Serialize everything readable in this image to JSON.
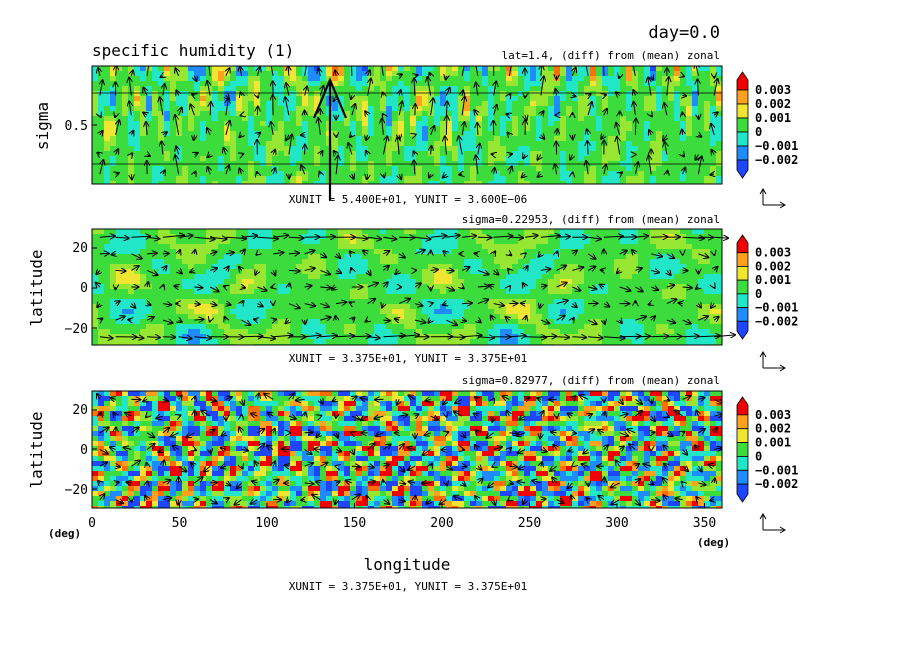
{
  "figure": {
    "title": "specific humidity (1)",
    "day_label": "day=0.0",
    "xlabel": "longitude",
    "x_unit_left": "(deg)",
    "x_unit_right": "(deg)",
    "x_ticks": [
      "0",
      "50",
      "100",
      "150",
      "200",
      "250",
      "300",
      "350"
    ]
  },
  "colors": {
    "levels": [
      "#1f46ff",
      "#1e8cff",
      "#22e6c8",
      "#3cdc3c",
      "#96e632",
      "#f0e632",
      "#ffa01e",
      "#ff6e00",
      "#f00000"
    ],
    "arrow": "#000000"
  },
  "colorbar_labels": [
    "0.003",
    "0.002",
    "0.001",
    "0",
    "−0.001",
    "−0.002"
  ],
  "chart_data": [
    {
      "type": "heatmap",
      "panel": "longitude-sigma section",
      "subtitle": "lat=1.4, (diff) from (mean) zonal",
      "ylabel": "sigma",
      "y_ticks": [
        "0.5"
      ],
      "xlim": [
        0,
        360
      ],
      "ylim": [
        0,
        1
      ],
      "vector_unit": "XUNIT = 5.400E+01, YUNIT = 3.600E−06",
      "colorbar": [
        "0.003",
        "0.002",
        "0.001",
        "0",
        "−0.001",
        "−0.002"
      ],
      "pattern": "vertical",
      "seed": 11,
      "arrow_style": "vertical"
    },
    {
      "type": "heatmap",
      "panel": "longitude-latitude map",
      "subtitle": "sigma=0.22953, (diff) from (mean) zonal",
      "ylabel": "latitude",
      "y_ticks": [
        "20",
        "0",
        "−20"
      ],
      "xlim": [
        0,
        360
      ],
      "ylim": [
        -30,
        30
      ],
      "vector_unit": "XUNIT = 3.375E+01, YUNIT = 3.375E+01",
      "colorbar": [
        "0.003",
        "0.002",
        "0.001",
        "0",
        "−0.001",
        "−0.002"
      ],
      "pattern": "smooth",
      "seed": 23,
      "arrow_style": "zonal"
    },
    {
      "type": "heatmap",
      "panel": "longitude-latitude map",
      "subtitle": "sigma=0.82977, (diff) from (mean) zonal",
      "ylabel": "latitude",
      "y_ticks": [
        "20",
        "0",
        "−20"
      ],
      "xlim": [
        0,
        360
      ],
      "ylim": [
        -30,
        30
      ],
      "vector_unit": "XUNIT = 3.375E+01, YUNIT = 3.375E+01",
      "colorbar": [
        "0.003",
        "0.002",
        "0.001",
        "0",
        "−0.001",
        "−0.002"
      ],
      "pattern": "blobs",
      "seed": 37,
      "arrow_style": "random"
    }
  ]
}
